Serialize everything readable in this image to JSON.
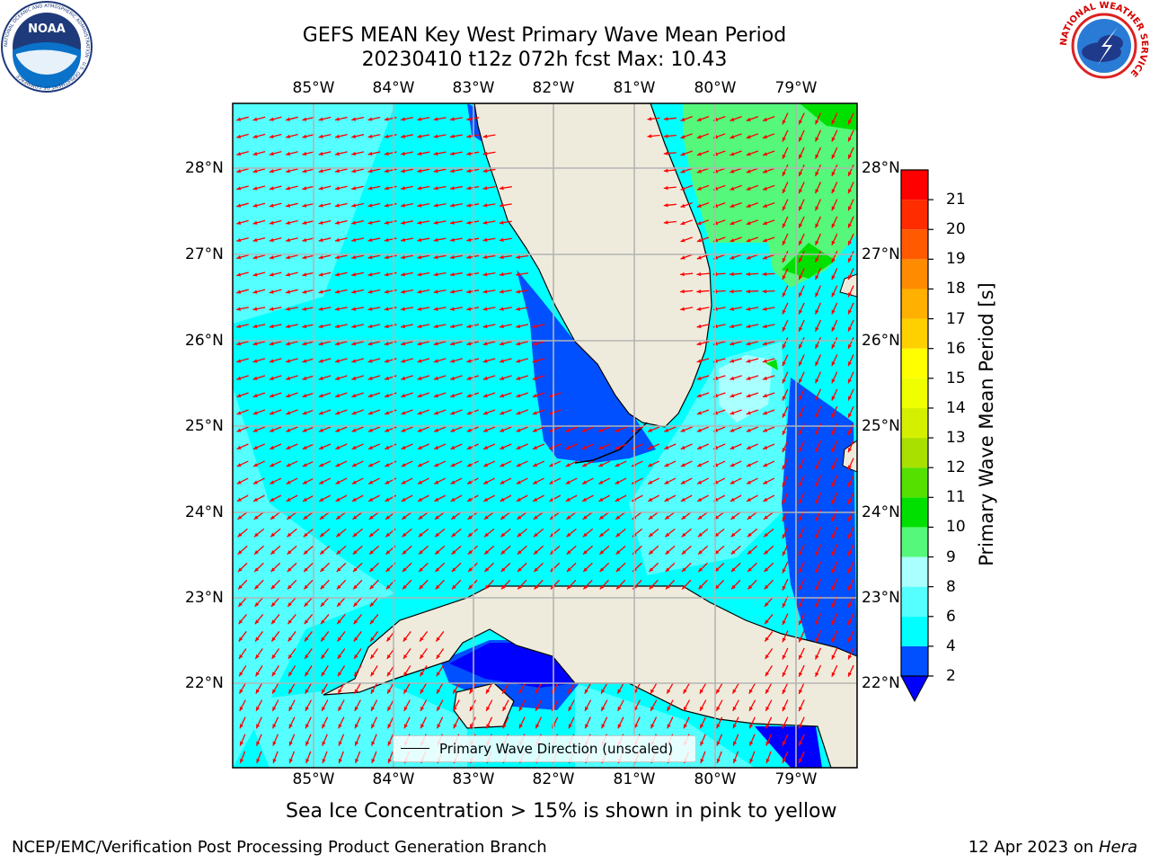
{
  "header": {
    "title_line1": "GEFS MEAN Key West Primary Wave Mean Period",
    "title_line2": "20230410 t12z 072h fcst   Max: 10.43"
  },
  "logos": {
    "left": "noaa-logo",
    "left_text": "NOAA",
    "left_ring_text": "NATIONAL OCEANIC AND ATMOSPHERIC ADMINISTRATION · U.S. DEPARTMENT OF COMMERCE",
    "right": "nws-logo",
    "right_ring_text": "NATIONAL WEATHER SERVICE"
  },
  "map": {
    "lon_labels": [
      "85°W",
      "84°W",
      "83°W",
      "82°W",
      "81°W",
      "80°W",
      "79°W"
    ],
    "lat_labels": [
      "28°N",
      "27°N",
      "26°N",
      "25°N",
      "24°N",
      "23°N",
      "22°N"
    ],
    "legend_label": "Primary Wave Direction (unscaled)",
    "arrow_color": "#ff0000",
    "land_color": "#efebdc",
    "ocean_color": "#00ffff"
  },
  "colorbar": {
    "title": "Primary Wave Mean Period [s]",
    "ticks": [
      "2",
      "4",
      "6",
      "8",
      "9",
      "10",
      "11",
      "12",
      "13",
      "14",
      "15",
      "16",
      "17",
      "18",
      "19",
      "20",
      "21"
    ],
    "colors": [
      "#0050ff",
      "#00ffff",
      "#55ffff",
      "#aaffff",
      "#55f87a",
      "#00e000",
      "#55e000",
      "#aae000",
      "#d4f000",
      "#f0ff00",
      "#ffff00",
      "#ffd000",
      "#ffb000",
      "#ff8c00",
      "#ff5a00",
      "#ff2c00",
      "#ff0000"
    ],
    "under_color": "#0000ff"
  },
  "footnote": "Sea Ice Concentration > 15% is shown in pink to yellow",
  "credits": {
    "left": "NCEP/EMC/Verification Post Processing Product Generation Branch",
    "right_date": "12 Apr 2023 on",
    "right_host": "Hera"
  }
}
